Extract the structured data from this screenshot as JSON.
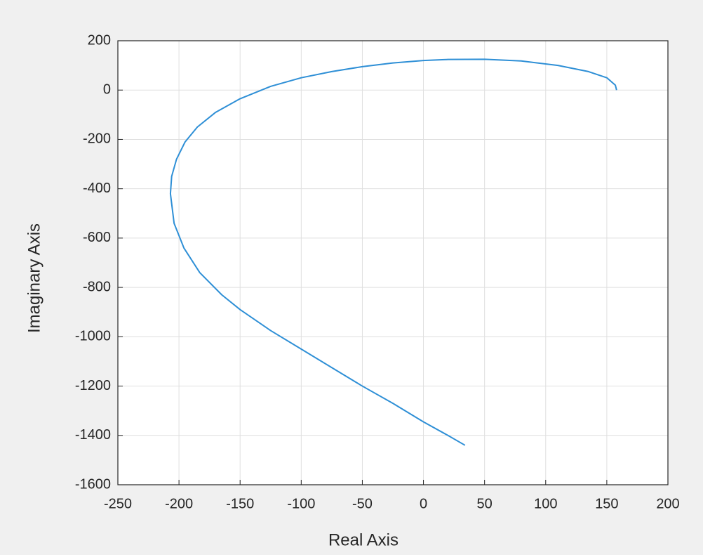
{
  "chart_data": {
    "type": "line",
    "xlabel": "Real Axis",
    "ylabel": "Imaginary Axis",
    "x": [
      158,
      157,
      150,
      135,
      110,
      80,
      50,
      20,
      0,
      -25,
      -50,
      -75,
      -100,
      -125,
      -150,
      -170,
      -185,
      -195,
      -202,
      -206,
      -207,
      -204,
      -196,
      -183,
      -165,
      -150,
      -125,
      -100,
      -75,
      -50,
      -25,
      0,
      20,
      34
    ],
    "series": [
      {
        "color": "#2e8fd6",
        "values": [
          0,
          20,
          50,
          75,
          100,
          118,
          125,
          124,
          120,
          110,
          95,
          75,
          50,
          15,
          -35,
          -90,
          -150,
          -210,
          -280,
          -350,
          -420,
          -540,
          -640,
          -740,
          -830,
          -890,
          -975,
          -1050,
          -1125,
          -1200,
          -1270,
          -1345,
          -1400,
          -1440
        ]
      }
    ],
    "xlim": [
      -250,
      200
    ],
    "ylim": [
      -1600,
      200
    ],
    "xticks": [
      -250,
      -200,
      -150,
      -100,
      -50,
      0,
      50,
      100,
      150,
      200
    ],
    "yticks": [
      -1600,
      -1400,
      -1200,
      -1000,
      -800,
      -600,
      -400,
      -200,
      0,
      200
    ],
    "grid": true
  }
}
